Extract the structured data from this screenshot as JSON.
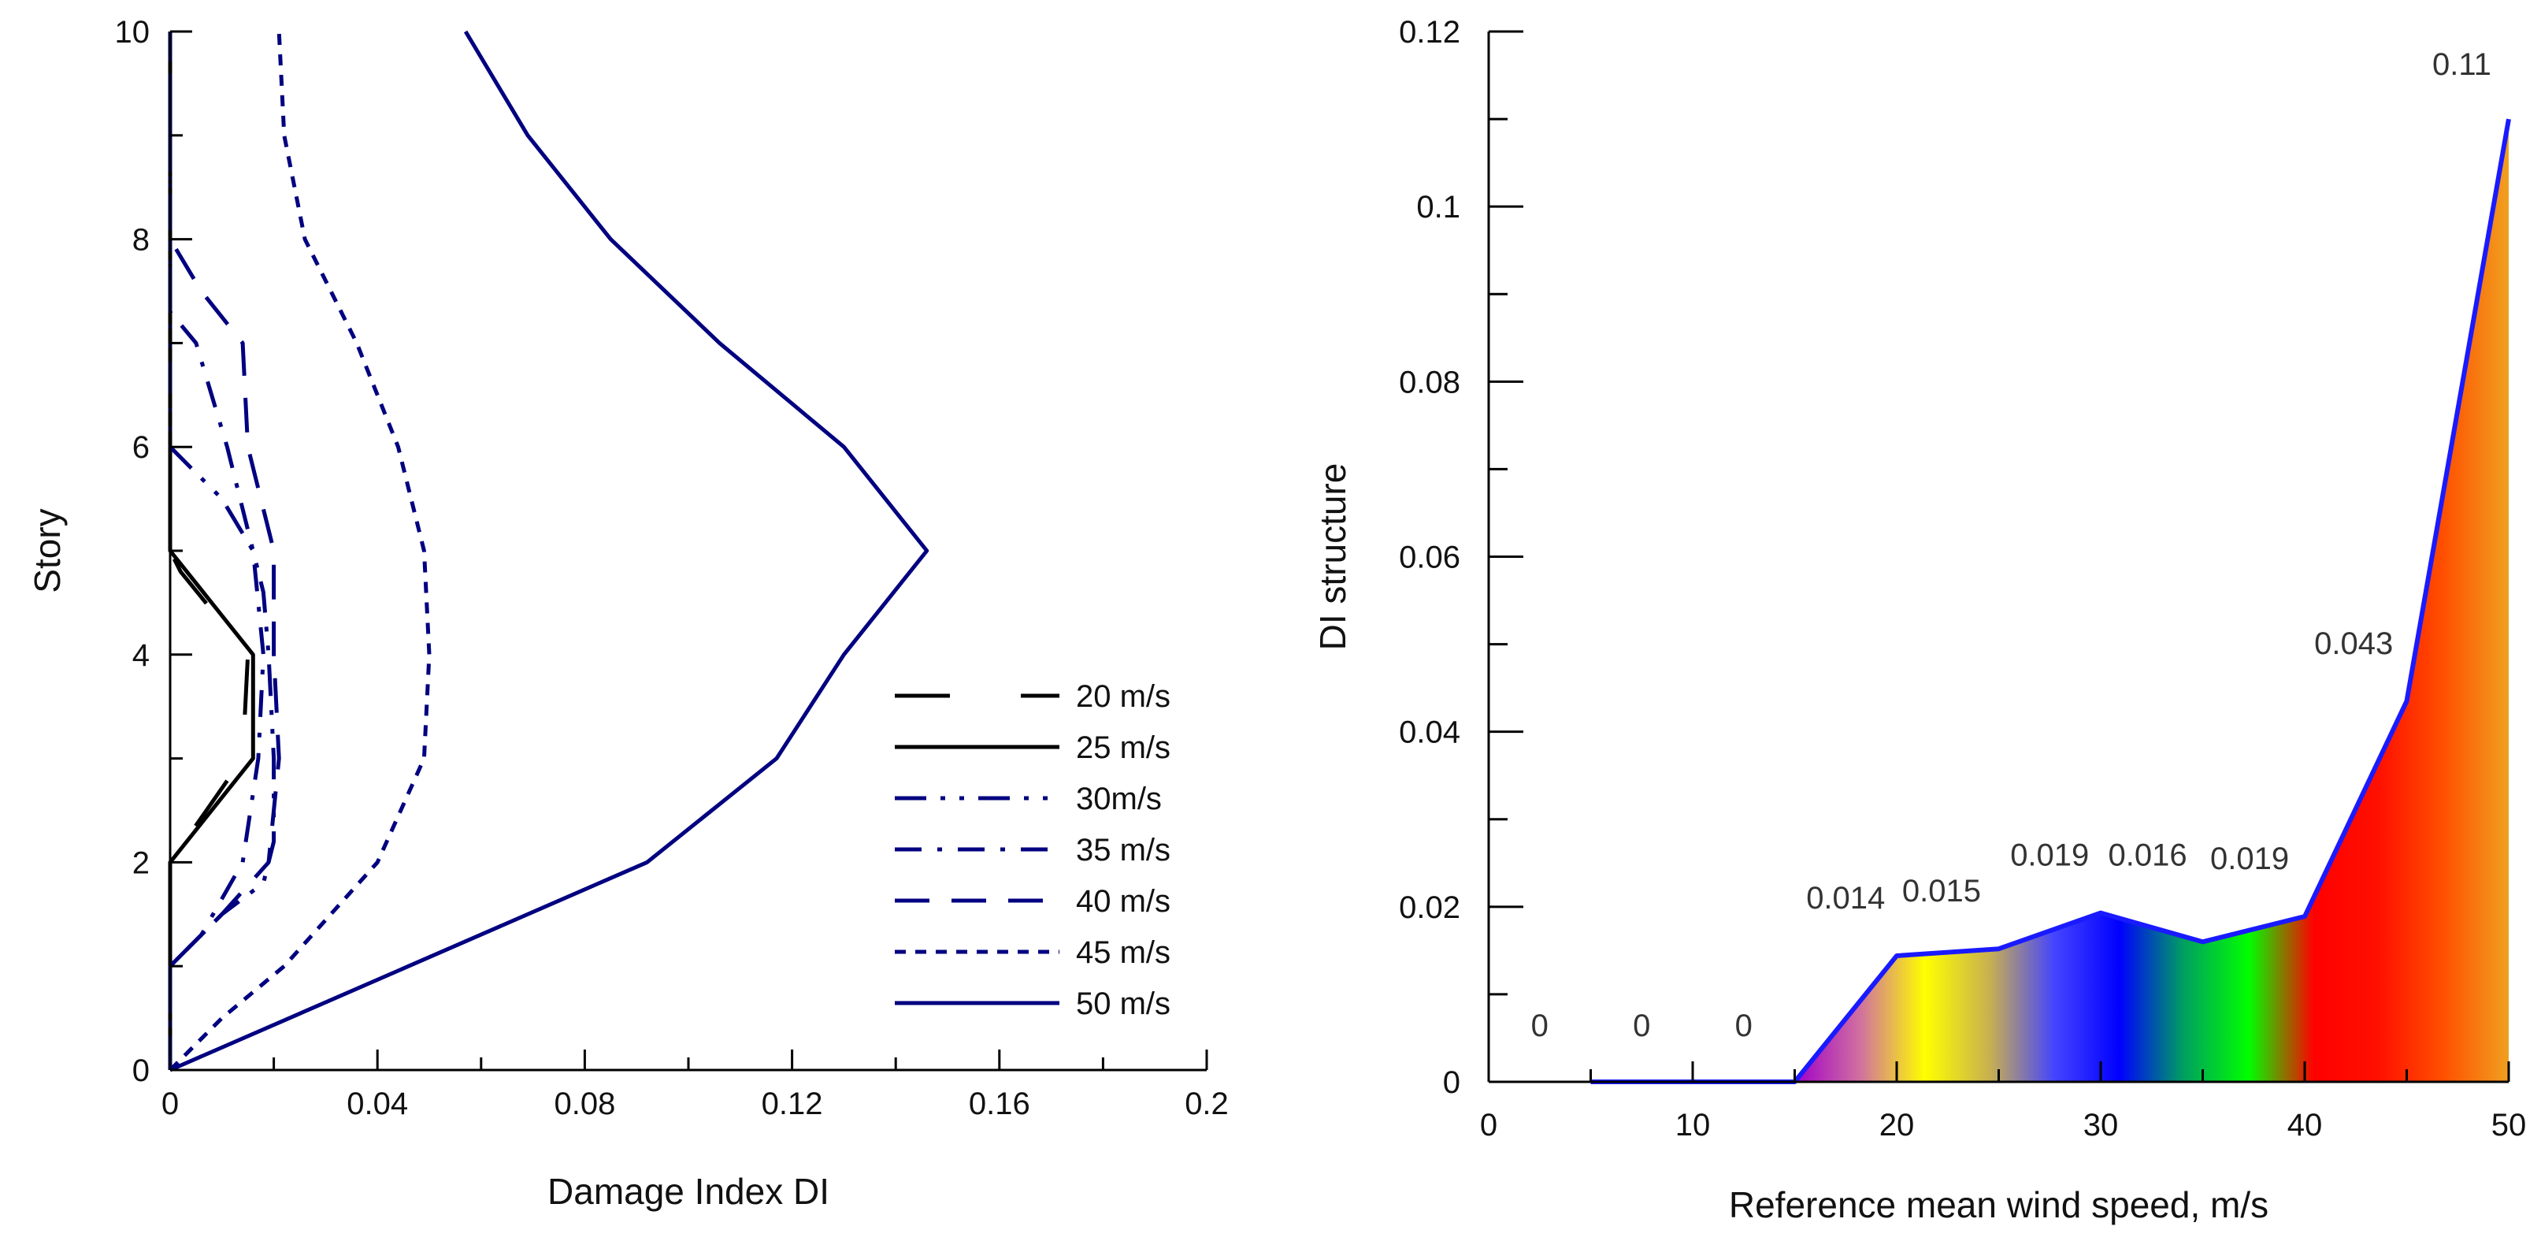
{
  "chart_data": [
    {
      "type": "line",
      "xlabel": "Damage Index DI",
      "ylabel": "Story",
      "xlim": [
        0,
        0.2
      ],
      "ylim": [
        0,
        10
      ],
      "x_ticks": [
        "0",
        "0.04",
        "0.08",
        "0.12",
        "0.16",
        "0.2"
      ],
      "x_tick_values": [
        0,
        0.04,
        0.08,
        0.12,
        0.16,
        0.2
      ],
      "y_ticks": [
        "0",
        "2",
        "4",
        "6",
        "8",
        "10"
      ],
      "y_tick_values": [
        0,
        2,
        4,
        6,
        8,
        10
      ],
      "grid": false,
      "legend_position": "lower-right",
      "series": [
        {
          "name": "20 m/s",
          "style": "longdash",
          "color": "#000000",
          "points": [
            [
              0,
              0
            ],
            [
              0,
              2
            ],
            [
              0.007,
              2.5
            ],
            [
              0.014,
              3
            ],
            [
              0.015,
              4
            ],
            [
              0.002,
              4.8
            ],
            [
              0,
              5
            ],
            [
              0,
              10
            ]
          ]
        },
        {
          "name": "25 m/s",
          "style": "solid",
          "color": "#000000",
          "points": [
            [
              0,
              0
            ],
            [
              0,
              2
            ],
            [
              0.016,
              3
            ],
            [
              0.016,
              4
            ],
            [
              0,
              5
            ],
            [
              0,
              10
            ]
          ]
        },
        {
          "name": "30m/s",
          "style": "dashdotdot",
          "color": "#000080",
          "points": [
            [
              0,
              0
            ],
            [
              0,
              1
            ],
            [
              0.01,
              1.5
            ],
            [
              0.018,
              1.8
            ],
            [
              0.02,
              2.2
            ],
            [
              0.02,
              3
            ],
            [
              0.019,
              4
            ],
            [
              0.018,
              4.6
            ],
            [
              0.016,
              5
            ],
            [
              0.01,
              5.5
            ],
            [
              0.004,
              5.8
            ],
            [
              0,
              6
            ],
            [
              0,
              10
            ]
          ]
        },
        {
          "name": "35 m/s",
          "style": "dashdot",
          "color": "#000080",
          "points": [
            [
              0,
              0
            ],
            [
              0,
              1
            ],
            [
              0.006,
              1.3
            ],
            [
              0.014,
              2
            ],
            [
              0.017,
              3
            ],
            [
              0.018,
              4
            ],
            [
              0.016,
              5
            ],
            [
              0.011,
              6
            ],
            [
              0.005,
              7
            ],
            [
              0,
              7.3
            ],
            [
              0,
              10
            ]
          ]
        },
        {
          "name": "40 m/s",
          "style": "longdashgap",
          "color": "#000080",
          "points": [
            [
              0,
              0
            ],
            [
              0,
              1
            ],
            [
              0.01,
              1.5
            ],
            [
              0.019,
              2
            ],
            [
              0.021,
              3
            ],
            [
              0.02,
              4
            ],
            [
              0.02,
              5
            ],
            [
              0.015,
              6
            ],
            [
              0.014,
              7
            ],
            [
              0.006,
              7.5
            ],
            [
              0,
              8
            ],
            [
              0,
              10
            ]
          ]
        },
        {
          "name": "45 m/s",
          "style": "shortdash",
          "color": "#000080",
          "points": [
            [
              0,
              0
            ],
            [
              0.01,
              0.5
            ],
            [
              0.022,
              1
            ],
            [
              0.04,
              2
            ],
            [
              0.049,
              3
            ],
            [
              0.05,
              4
            ],
            [
              0.049,
              5
            ],
            [
              0.044,
              6
            ],
            [
              0.036,
              7
            ],
            [
              0.026,
              8
            ],
            [
              0.022,
              9
            ],
            [
              0.021,
              10
            ]
          ]
        },
        {
          "name": "50 m/s",
          "style": "solid",
          "color": "#000080",
          "points": [
            [
              0,
              0
            ],
            [
              0.046,
              1
            ],
            [
              0.092,
              2
            ],
            [
              0.117,
              3
            ],
            [
              0.13,
              4
            ],
            [
              0.146,
              5
            ],
            [
              0.13,
              6
            ],
            [
              0.106,
              7
            ],
            [
              0.085,
              8
            ],
            [
              0.069,
              9
            ],
            [
              0.057,
              10
            ]
          ]
        }
      ]
    },
    {
      "type": "area",
      "xlabel": "Reference mean wind speed, m/s",
      "ylabel": "DI structure",
      "xlim": [
        0,
        50
      ],
      "ylim": [
        0,
        0.12
      ],
      "x_ticks": [
        "0",
        "10",
        "20",
        "30",
        "40",
        "50"
      ],
      "x_tick_values": [
        0,
        10,
        20,
        30,
        40,
        50
      ],
      "y_ticks": [
        "0",
        "0.02",
        "0.04",
        "0.06",
        "0.08",
        "0.1",
        "0.12"
      ],
      "y_tick_values": [
        0,
        0.02,
        0.04,
        0.06,
        0.08,
        0.1,
        0.12
      ],
      "grid": false,
      "x": [
        5,
        10,
        15,
        20,
        25,
        30,
        35,
        40,
        45,
        50
      ],
      "values": [
        0,
        0,
        0,
        0.0144,
        0.0152,
        0.0193,
        0.016,
        0.0189,
        0.0435,
        0.11
      ],
      "line_color": "#1a1aff",
      "data_labels": [
        {
          "x": 2.5,
          "text": "0"
        },
        {
          "x": 7.5,
          "text": "0"
        },
        {
          "x": 12.5,
          "text": "0"
        },
        {
          "x": 17.5,
          "text": "0.014"
        },
        {
          "x": 22.2,
          "text": "0.015"
        },
        {
          "x": 27.5,
          "text": "0.019"
        },
        {
          "x": 32.3,
          "text": "0.016"
        },
        {
          "x": 37.3,
          "text": "0.019"
        },
        {
          "x": 42.4,
          "text": "0.043"
        },
        {
          "x": 47.7,
          "text": "0.11"
        }
      ],
      "gradient_colors": [
        "#a000c8",
        "#d070a0",
        "#ffff00",
        "#c8b050",
        "#4444ff",
        "#0000ff",
        "#00a060",
        "#00ff00",
        "#ff0000",
        "#ff1000",
        "#ff5000",
        "#f0a020"
      ]
    }
  ]
}
